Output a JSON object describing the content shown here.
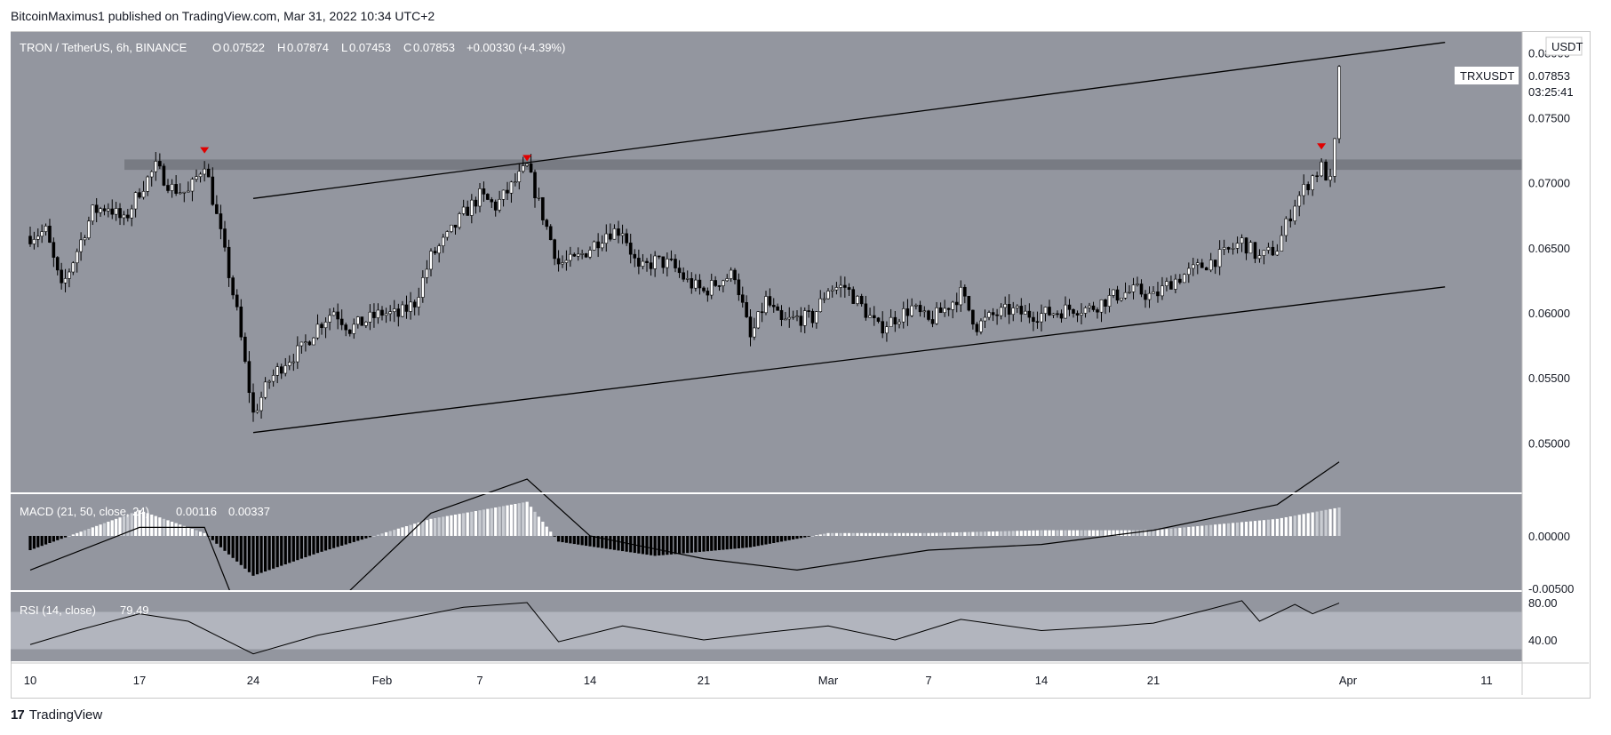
{
  "header": {
    "published": "BitcoinMaximus1 published on TradingView.com, Mar 31, 2022 10:34 UTC+2"
  },
  "footer": {
    "brand": "TradingView",
    "logo": "17"
  },
  "colors": {
    "plot_bg": "#93969f",
    "indicator_bg": "#93969f",
    "candle": "#ffffff",
    "candle_dark": "#000000",
    "marker": "#e00000",
    "line": "#000000",
    "rsi_band": "#b2b5be",
    "resistance_zone": "#6f7279"
  },
  "chart_data": [
    {
      "type": "candlestick",
      "title": "TRON / TetherUS, 6h, BINANCE",
      "ohlc_readout": {
        "o_label": "O",
        "o": "0.07522",
        "h_label": "H",
        "h": "0.07874",
        "l_label": "L",
        "l": "0.07453",
        "c_label": "C",
        "c": "0.07853",
        "change": "+0.00330 (+4.39%)"
      },
      "currency": "USDT",
      "symbol_tag": "TRXUSDT",
      "last_price": "0.07853",
      "countdown": "03:25:41",
      "y_ticks": [
        "0.08000",
        "0.07500",
        "0.07000",
        "0.06500",
        "0.06000",
        "0.05500",
        "0.05000"
      ],
      "y_tick_values": [
        0.08,
        0.075,
        0.07,
        0.065,
        0.06,
        0.055,
        0.05
      ],
      "ylim": [
        0.0462,
        0.0816
      ],
      "x_ticks": [
        "10",
        "17",
        "24",
        "Feb",
        "7",
        "14",
        "21",
        "Mar",
        "7",
        "14",
        "21",
        "Apr",
        "11"
      ],
      "x_tick_dates": [
        "2022-01-10",
        "2022-01-17",
        "2022-01-24",
        "2022-02-01",
        "2022-02-07",
        "2022-02-14",
        "2022-02-21",
        "2022-03-01",
        "2022-03-07",
        "2022-03-14",
        "2022-03-21",
        "2022-04-01",
        "2022-04-11"
      ],
      "price_path": [
        [
          "2022-01-10",
          0.0659
        ],
        [
          "2022-01-11",
          0.0663
        ],
        [
          "2022-01-12",
          0.0618
        ],
        [
          "2022-01-13",
          0.0648
        ],
        [
          "2022-01-14",
          0.0678
        ],
        [
          "2022-01-15",
          0.0682
        ],
        [
          "2022-01-16",
          0.067
        ],
        [
          "2022-01-17",
          0.0694
        ],
        [
          "2022-01-18",
          0.0712
        ],
        [
          "2022-01-19",
          0.0696
        ],
        [
          "2022-01-20",
          0.0692
        ],
        [
          "2022-01-21",
          0.0716
        ],
        [
          "2022-01-22",
          0.066
        ],
        [
          "2022-01-23",
          0.06
        ],
        [
          "2022-01-23T12:00",
          0.056
        ],
        [
          "2022-01-24",
          0.0522
        ],
        [
          "2022-01-25",
          0.0548
        ],
        [
          "2022-01-26",
          0.0563
        ],
        [
          "2022-01-27",
          0.0572
        ],
        [
          "2022-01-28",
          0.059
        ],
        [
          "2022-01-29",
          0.0602
        ],
        [
          "2022-01-30",
          0.0588
        ],
        [
          "2022-02-01",
          0.06
        ],
        [
          "2022-02-02",
          0.0598
        ],
        [
          "2022-02-03",
          0.0608
        ],
        [
          "2022-02-04",
          0.0643
        ],
        [
          "2022-02-05",
          0.0658
        ],
        [
          "2022-02-06",
          0.0676
        ],
        [
          "2022-02-07",
          0.069
        ],
        [
          "2022-02-08",
          0.0682
        ],
        [
          "2022-02-09",
          0.0697
        ],
        [
          "2022-02-10",
          0.0712
        ],
        [
          "2022-02-11",
          0.0675
        ],
        [
          "2022-02-12",
          0.0638
        ],
        [
          "2022-02-13",
          0.064
        ],
        [
          "2022-02-14",
          0.065
        ],
        [
          "2022-02-15",
          0.0662
        ],
        [
          "2022-02-16",
          0.0664
        ],
        [
          "2022-02-17",
          0.0632
        ],
        [
          "2022-02-18",
          0.064
        ],
        [
          "2022-02-19",
          0.0637
        ],
        [
          "2022-02-20",
          0.0624
        ],
        [
          "2022-02-21",
          0.0616
        ],
        [
          "2022-02-22",
          0.0625
        ],
        [
          "2022-02-23",
          0.063
        ],
        [
          "2022-02-24",
          0.058
        ],
        [
          "2022-02-25",
          0.061
        ],
        [
          "2022-02-26",
          0.0592
        ],
        [
          "2022-02-27",
          0.0596
        ],
        [
          "2022-02-28",
          0.0596
        ],
        [
          "2022-03-01",
          0.0619
        ],
        [
          "2022-03-02",
          0.062
        ],
        [
          "2022-03-03",
          0.0605
        ],
        [
          "2022-03-04",
          0.0588
        ],
        [
          "2022-03-05",
          0.0596
        ],
        [
          "2022-03-06",
          0.0604
        ],
        [
          "2022-03-07",
          0.0593
        ],
        [
          "2022-03-08",
          0.0603
        ],
        [
          "2022-03-09",
          0.0615
        ],
        [
          "2022-03-10",
          0.059
        ],
        [
          "2022-03-11",
          0.0598
        ],
        [
          "2022-03-12",
          0.0602
        ],
        [
          "2022-03-13",
          0.0599
        ],
        [
          "2022-03-14",
          0.0599
        ],
        [
          "2022-03-15",
          0.0601
        ],
        [
          "2022-03-16",
          0.0604
        ],
        [
          "2022-03-17",
          0.0603
        ],
        [
          "2022-03-18",
          0.061
        ],
        [
          "2022-03-19",
          0.0615
        ],
        [
          "2022-03-20",
          0.0617
        ],
        [
          "2022-03-21",
          0.0612
        ],
        [
          "2022-03-22",
          0.0624
        ],
        [
          "2022-03-23",
          0.0631
        ],
        [
          "2022-03-24",
          0.0638
        ],
        [
          "2022-03-25",
          0.0645
        ],
        [
          "2022-03-26",
          0.0655
        ],
        [
          "2022-03-27",
          0.0642
        ],
        [
          "2022-03-28",
          0.065
        ],
        [
          "2022-03-29",
          0.0685
        ],
        [
          "2022-03-30",
          0.0705
        ],
        [
          "2022-03-30T12:00",
          0.0712
        ],
        [
          "2022-03-31",
          0.07
        ],
        [
          "2022-03-31T06:00",
          0.073
        ],
        [
          "2022-03-31T12:00",
          0.0785
        ]
      ],
      "resistance_zone": [
        0.071,
        0.0718
      ],
      "red_markers": [
        [
          "2022-01-21",
          0.0724
        ],
        [
          "2022-02-10",
          0.0718
        ],
        [
          "2022-03-30T12:00",
          0.0727
        ]
      ],
      "channel_upper": [
        [
          "2022-01-24",
          0.0688
        ],
        [
          "2022-04-08",
          0.0808
        ]
      ],
      "channel_lower": [
        [
          "2022-01-24",
          0.0508
        ],
        [
          "2022-04-08",
          0.062
        ]
      ]
    },
    {
      "type": "macd",
      "label": "MACD (21, 50, close, 24)",
      "value_1": "0.00116",
      "value_2": "0.00337",
      "y_ticks": [
        "0.00000",
        "-0.00500"
      ],
      "histogram_path": [
        [
          "2022-01-10",
          -0.0005
        ],
        [
          "2022-01-17",
          0.0009
        ],
        [
          "2022-01-21",
          0.0001
        ],
        [
          "2022-01-24",
          -0.0014
        ],
        [
          "2022-01-28",
          -0.0006
        ],
        [
          "2022-02-04",
          0.0006
        ],
        [
          "2022-02-10",
          0.0012
        ],
        [
          "2022-02-12",
          -0.0002
        ],
        [
          "2022-02-18",
          -0.0007
        ],
        [
          "2022-02-24",
          -0.0004
        ],
        [
          "2022-03-01",
          0.0001
        ],
        [
          "2022-03-07",
          0.0001
        ],
        [
          "2022-03-14",
          0.0002
        ],
        [
          "2022-03-21",
          0.0002
        ],
        [
          "2022-03-28",
          0.0006
        ],
        [
          "2022-03-31T12:00",
          0.001
        ]
      ],
      "line_path": [
        [
          "2022-01-10",
          -0.0012
        ],
        [
          "2022-01-17",
          0.0003
        ],
        [
          "2022-01-21",
          0.0003
        ],
        [
          "2022-01-24",
          -0.004
        ],
        [
          "2022-01-28",
          -0.003
        ],
        [
          "2022-02-04",
          0.0008
        ],
        [
          "2022-02-10",
          0.002
        ],
        [
          "2022-02-14",
          0.0
        ],
        [
          "2022-02-21",
          -0.0008
        ],
        [
          "2022-02-27",
          -0.0012
        ],
        [
          "2022-03-07",
          -0.0005
        ],
        [
          "2022-03-14",
          -0.0003
        ],
        [
          "2022-03-21",
          0.0002
        ],
        [
          "2022-03-28",
          0.0011
        ],
        [
          "2022-03-31T12:00",
          0.0026
        ]
      ]
    },
    {
      "type": "rsi",
      "label": "RSI (14, close)",
      "value": "79.49",
      "y_ticks": [
        "80.00",
        "40.00"
      ],
      "band": [
        30,
        70
      ],
      "path": [
        [
          "2022-01-10",
          35
        ],
        [
          "2022-01-13",
          50
        ],
        [
          "2022-01-17",
          68
        ],
        [
          "2022-01-20",
          60
        ],
        [
          "2022-01-24",
          25
        ],
        [
          "2022-01-28",
          45
        ],
        [
          "2022-02-01",
          58
        ],
        [
          "2022-02-06",
          75
        ],
        [
          "2022-02-10",
          80
        ],
        [
          "2022-02-12",
          38
        ],
        [
          "2022-02-16",
          55
        ],
        [
          "2022-02-21",
          40
        ],
        [
          "2022-02-25",
          48
        ],
        [
          "2022-03-01",
          55
        ],
        [
          "2022-03-05",
          40
        ],
        [
          "2022-03-09",
          62
        ],
        [
          "2022-03-14",
          50
        ],
        [
          "2022-03-18",
          54
        ],
        [
          "2022-03-21",
          58
        ],
        [
          "2022-03-24",
          72
        ],
        [
          "2022-03-26",
          82
        ],
        [
          "2022-03-27",
          60
        ],
        [
          "2022-03-29",
          78
        ],
        [
          "2022-03-30",
          68
        ],
        [
          "2022-03-31T12:00",
          79.49
        ]
      ]
    }
  ]
}
